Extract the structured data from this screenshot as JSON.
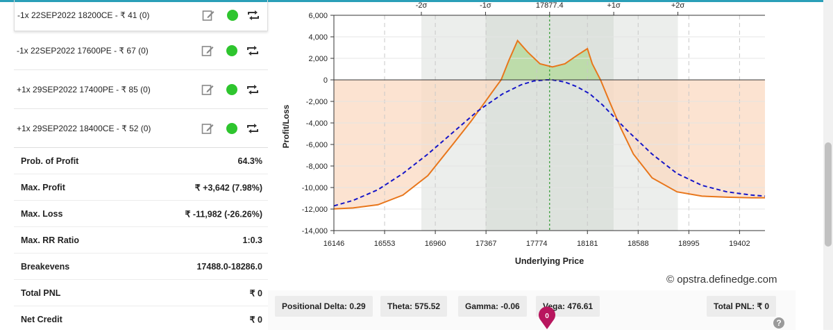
{
  "legs": [
    {
      "label": "-1x 22SEP2022 18200CE - ₹ 41 (0)",
      "active": true
    },
    {
      "label": "-1x 22SEP2022 17600PE - ₹ 67 (0)",
      "active": true
    },
    {
      "label": "+1x 29SEP2022 17400PE - ₹ 85 (0)",
      "active": true
    },
    {
      "label": "+1x 29SEP2022 18400CE - ₹ 52 (0)",
      "active": true
    }
  ],
  "summary": [
    {
      "label": "Prob. of Profit",
      "value": "64.3%"
    },
    {
      "label": "Max. Profit",
      "value": "₹ +3,642 (7.98%)"
    },
    {
      "label": "Max. Loss",
      "value": "₹ -11,982 (-26.26%)"
    },
    {
      "label": "Max. RR Ratio",
      "value": "1:0.3"
    },
    {
      "label": "Breakevens",
      "value": "17488.0-18286.0"
    },
    {
      "label": "Total PNL",
      "value": "₹ 0"
    },
    {
      "label": "Net Credit",
      "value": "₹ 0"
    }
  ],
  "greeks": {
    "delta": "Positional Delta: 0.29",
    "theta": "Theta: 575.52",
    "gamma": "Gamma: -0.06",
    "vega": "Vega: 476.61",
    "total_pnl": "Total PNL: ₹ 0"
  },
  "pin_badge": "0",
  "watermark": "© opstra.definedge.com",
  "colors": {
    "profit_fill": "#b9dca4",
    "loss_fill": "#fbd9c2",
    "expiry_line": "#e8761b",
    "target_line": "#1515c8",
    "status_active": "#2ec52e",
    "accent_bar": "#2a9fb8"
  },
  "chart_data": {
    "type": "line",
    "xlabel": "Underlying Price",
    "ylabel": "Profit/Loss",
    "xlim": [
      16146,
      19606
    ],
    "ylim": [
      -14000,
      6000
    ],
    "x_ticks": [
      16146,
      16553,
      16960,
      17367,
      17774,
      18181,
      18588,
      18995,
      19402
    ],
    "y_ticks": [
      6000,
      4000,
      2000,
      0,
      -2000,
      -4000,
      -6000,
      -8000,
      -10000,
      -12000,
      -14000
    ],
    "spot": 17877.4,
    "sigma_markers": [
      {
        "label": "-2σ",
        "x": 16848
      },
      {
        "label": "-1σ",
        "x": 17363
      },
      {
        "label": "17877.4",
        "x": 17877.4
      },
      {
        "label": "+1σ",
        "x": 18392
      },
      {
        "label": "+2σ",
        "x": 18907
      }
    ],
    "series": [
      {
        "style": "solid-orange",
        "x": [
          16146,
          16300,
          16500,
          16700,
          16900,
          17100,
          17250,
          17350,
          17450,
          17488,
          17550,
          17620,
          17700,
          17800,
          17900,
          18000,
          18100,
          18181,
          18220,
          18286,
          18350,
          18450,
          18550,
          18700,
          18900,
          19100,
          19300,
          19500,
          19606
        ],
        "y": [
          -11982,
          -11900,
          -11600,
          -10700,
          -8900,
          -6000,
          -3800,
          -2200,
          -600,
          0,
          1800,
          3642,
          2600,
          1500,
          1200,
          1500,
          2300,
          2900,
          1500,
          0,
          -1800,
          -4500,
          -6900,
          -9100,
          -10400,
          -10800,
          -10900,
          -10950,
          -10950
        ]
      },
      {
        "style": "dashed-blue",
        "x": [
          16146,
          16300,
          16500,
          16700,
          16900,
          17100,
          17300,
          17500,
          17650,
          17750,
          17850,
          17900,
          18000,
          18100,
          18200,
          18300,
          18400,
          18500,
          18700,
          18900,
          19100,
          19300,
          19500,
          19606
        ],
        "y": [
          -11700,
          -11200,
          -10200,
          -8700,
          -6900,
          -4900,
          -2900,
          -1300,
          -450,
          -100,
          0,
          0,
          -200,
          -650,
          -1300,
          -2300,
          -3500,
          -4700,
          -6900,
          -8700,
          -9800,
          -10400,
          -10700,
          -10800
        ]
      }
    ]
  }
}
